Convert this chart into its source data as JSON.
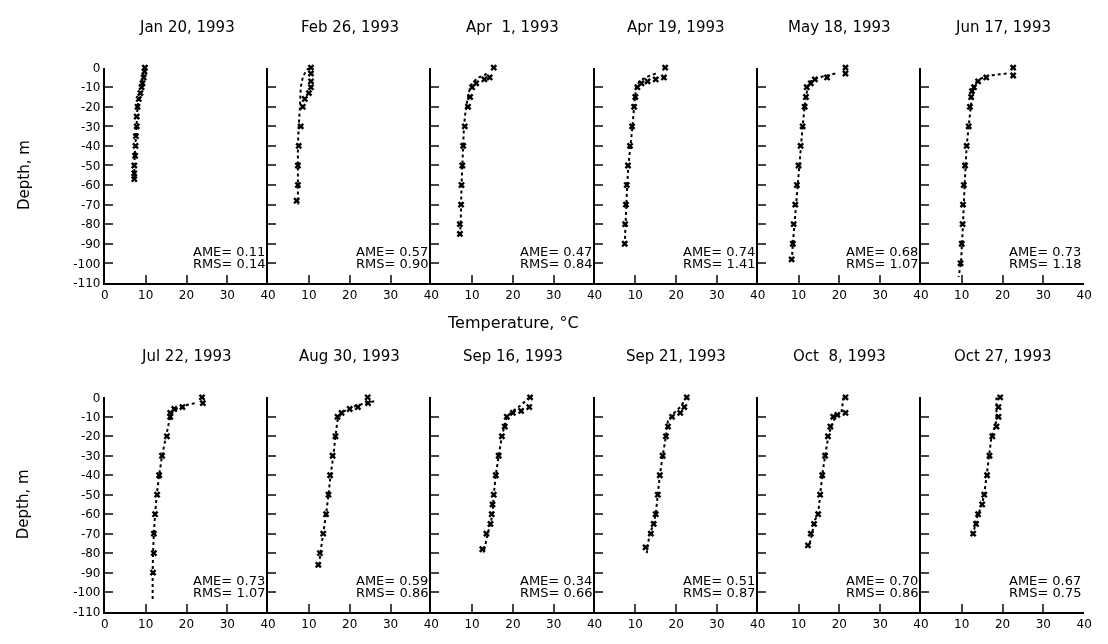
{
  "chart_data": [
    {
      "type": "scatter",
      "title": "Jan 20, 1993",
      "ylabel": "Depth, m",
      "xlim": [
        0,
        40
      ],
      "xticks": [
        0,
        10,
        20,
        30,
        40
      ],
      "ylim": [
        -110,
        0
      ],
      "yticks": [
        0,
        -10,
        -20,
        -30,
        -40,
        -50,
        -60,
        -70,
        -80,
        -90,
        -100,
        -110
      ],
      "marker": "cross",
      "annotations": [
        "AME= 0.11",
        "RMS= 0.14"
      ],
      "series": [
        {
          "color": "#000000",
          "x": [
            9.8,
            9.7,
            9.5,
            9.2,
            9,
            8.7,
            8.3,
            8,
            7.8,
            7.8,
            7.6,
            7.5,
            7.4,
            7.2,
            7.2,
            7.2
          ],
          "values": [
            0,
            -2,
            -5,
            -8,
            -10,
            -13,
            -16,
            -20,
            -25,
            -30,
            -35,
            -40,
            -45,
            -50,
            -54,
            -57
          ]
        },
        {
          "type": "line",
          "line_style": "dotted",
          "marker": "none",
          "color": "#000000",
          "x": [
            9.7,
            9.5,
            9.2,
            9,
            8.6,
            8.2,
            8,
            7.8,
            7.6,
            7.4,
            7.2,
            7.2
          ],
          "values": [
            0,
            -3,
            -6,
            -9,
            -13,
            -17,
            -20,
            -28,
            -35,
            -42,
            -50,
            -57
          ]
        }
      ]
    },
    {
      "type": "scatter",
      "title": "Feb 26, 1993",
      "xlim": [
        0,
        40
      ],
      "xticks": [
        10,
        20,
        30,
        40
      ],
      "ylim": [
        -110,
        0
      ],
      "yticks": [
        0,
        -10,
        -20,
        -30,
        -40,
        -50,
        -60,
        -70,
        -80,
        -90,
        -100,
        -110
      ],
      "tick_labels": "x",
      "marker": "cross",
      "annotations": [
        "AME= 0.57",
        "RMS= 0.90"
      ],
      "series": [
        {
          "color": "#000000",
          "x": [
            10.5,
            10.5,
            10.5,
            10.5,
            10,
            9,
            8.5,
            8,
            7.5,
            7.3,
            7.3,
            7
          ],
          "values": [
            0,
            -3,
            -7,
            -10,
            -13,
            -16,
            -20,
            -30,
            -40,
            -50,
            -60,
            -68
          ]
        },
        {
          "type": "line",
          "line_style": "dotted",
          "marker": "none",
          "color": "#000000",
          "x": [
            10,
            9.2,
            8.5,
            8,
            7.8,
            7.5,
            7.3,
            7.3,
            7.3,
            7.3
          ],
          "values": [
            0,
            -2,
            -5,
            -10,
            -20,
            -30,
            -40,
            -50,
            -60,
            -70
          ]
        }
      ]
    },
    {
      "type": "scatter",
      "title": "Apr  1, 1993",
      "xlabel": "Temperature, °C",
      "xlim": [
        0,
        40
      ],
      "xticks": [
        10,
        20,
        30,
        40
      ],
      "ylim": [
        -110,
        0
      ],
      "yticks": [
        0,
        -10,
        -20,
        -30,
        -40,
        -50,
        -60,
        -70,
        -80,
        -90,
        -100,
        -110
      ],
      "tick_labels": "x",
      "marker": "cross",
      "annotations": [
        "AME= 0.47",
        "RMS= 0.84"
      ],
      "series": [
        {
          "color": "#000000",
          "x": [
            15.3,
            14.3,
            13,
            11,
            10,
            9.5,
            9,
            8.2,
            7.8,
            7.6,
            7.4,
            7.3,
            7,
            7
          ],
          "values": [
            0,
            -5,
            -6,
            -8,
            -10,
            -15,
            -20,
            -30,
            -40,
            -50,
            -60,
            -70,
            -80,
            -85
          ]
        },
        {
          "type": "line",
          "line_style": "dotted",
          "marker": "none",
          "color": "#000000",
          "x": [
            13.5,
            13,
            11.5,
            10,
            9.5,
            9,
            8.5,
            8,
            7.8,
            7.4,
            7.2,
            7
          ],
          "values": [
            -3,
            -4,
            -5,
            -8,
            -10,
            -15,
            -20,
            -30,
            -40,
            -60,
            -80,
            -85
          ]
        }
      ]
    },
    {
      "type": "scatter",
      "title": "Apr 19, 1993",
      "xlim": [
        0,
        40
      ],
      "xticks": [
        10,
        20,
        30,
        40
      ],
      "ylim": [
        -110,
        0
      ],
      "yticks": [
        0,
        -10,
        -20,
        -30,
        -40,
        -50,
        -60,
        -70,
        -80,
        -90,
        -100,
        -110
      ],
      "tick_labels": "x",
      "marker": "cross",
      "annotations": [
        "AME= 0.74",
        "RMS= 1.41"
      ],
      "series": [
        {
          "color": "#000000",
          "x": [
            17.3,
            17,
            15,
            13,
            11.5,
            10.5,
            10,
            9.7,
            9.2,
            8.7,
            8.2,
            7.9,
            7.7,
            7.5,
            7.4
          ],
          "values": [
            0,
            -5,
            -6,
            -7,
            -8,
            -10,
            -15,
            -20,
            -30,
            -40,
            -50,
            -60,
            -70,
            -80,
            -90
          ]
        },
        {
          "type": "line",
          "line_style": "dotted",
          "marker": "none",
          "color": "#000000",
          "x": [
            15,
            12.5,
            11,
            10.2,
            9.7,
            9.3,
            8.8,
            8.3,
            8,
            7.6,
            7.4
          ],
          "values": [
            -3,
            -5,
            -7,
            -10,
            -20,
            -30,
            -40,
            -50,
            -60,
            -80,
            -91
          ]
        }
      ]
    },
    {
      "type": "scatter",
      "title": "May 18, 1993",
      "xlim": [
        0,
        40
      ],
      "xticks": [
        10,
        20,
        30,
        40
      ],
      "ylim": [
        -110,
        0
      ],
      "yticks": [
        0,
        -10,
        -20,
        -30,
        -40,
        -50,
        -60,
        -70,
        -80,
        -90,
        -100,
        -110
      ],
      "tick_labels": "x",
      "marker": "cross",
      "annotations": [
        "AME= 0.68",
        "RMS= 1.07"
      ],
      "series": [
        {
          "color": "#000000",
          "x": [
            21.5,
            21.5,
            17,
            14,
            13,
            12,
            11.8,
            11.5,
            11,
            10.5,
            10,
            9.6,
            9.2,
            8.8,
            8.6,
            8.3
          ],
          "values": [
            0,
            -3,
            -5,
            -6,
            -8,
            -10,
            -15,
            -20,
            -30,
            -40,
            -50,
            -60,
            -70,
            -80,
            -90,
            -98
          ]
        },
        {
          "type": "line",
          "line_style": "dotted",
          "marker": "none",
          "color": "#000000",
          "x": [
            19,
            15,
            13,
            12.2,
            11.5,
            11,
            10.6,
            10.2,
            9.8,
            9.4,
            9,
            8.6,
            8.3
          ],
          "values": [
            -3,
            -5,
            -7,
            -10,
            -20,
            -30,
            -40,
            -50,
            -60,
            -70,
            -80,
            -90,
            -100
          ]
        }
      ]
    },
    {
      "type": "scatter",
      "title": "Jun 17, 1993",
      "xlim": [
        0,
        40
      ],
      "xticks": [
        10,
        20,
        30,
        40
      ],
      "ylim": [
        -110,
        0
      ],
      "yticks": [
        0,
        -10,
        -20,
        -30,
        -40,
        -50,
        -60,
        -70,
        -80,
        -90,
        -100,
        -110
      ],
      "tick_labels": "x",
      "marker": "cross",
      "annotations": [
        "AME= 0.73",
        "RMS= 1.18"
      ],
      "series": [
        {
          "color": "#000000",
          "x": [
            22.6,
            22.6,
            16,
            14,
            13,
            12.5,
            12.3,
            12,
            11.7,
            11.2,
            10.8,
            10.5,
            10.3,
            10.2,
            10,
            9.7
          ],
          "values": [
            0,
            -4,
            -5,
            -7,
            -10,
            -12,
            -15,
            -20,
            -30,
            -40,
            -50,
            -60,
            -70,
            -80,
            -90,
            -100
          ]
        },
        {
          "type": "line",
          "line_style": "dotted",
          "marker": "none",
          "color": "#000000",
          "x": [
            21,
            17,
            14,
            12.8,
            12.2,
            11.7,
            11.2,
            10.7,
            10.3,
            9.8,
            9.2
          ],
          "values": [
            -3,
            -4,
            -6,
            -10,
            -20,
            -30,
            -40,
            -60,
            -80,
            -100,
            -107
          ]
        }
      ]
    },
    {
      "type": "scatter",
      "title": "Jul 22, 1993",
      "ylabel": "Depth, m",
      "xlim": [
        0,
        40
      ],
      "xticks": [
        0,
        10,
        20,
        30,
        40
      ],
      "ylim": [
        -110,
        0
      ],
      "yticks": [
        0,
        -10,
        -20,
        -30,
        -40,
        -50,
        -60,
        -70,
        -80,
        -90,
        -100,
        -110
      ],
      "marker": "cross",
      "annotations": [
        "AME= 0.73",
        "RMS= 1.07"
      ],
      "series": [
        {
          "color": "#000000",
          "x": [
            23.8,
            24,
            19,
            17,
            16,
            16,
            15.2,
            14,
            13.3,
            12.8,
            12.3,
            12,
            12,
            11.8
          ],
          "values": [
            0,
            -3,
            -5,
            -6,
            -8,
            -10,
            -20,
            -30,
            -40,
            -50,
            -60,
            -70,
            -80,
            -90
          ]
        },
        {
          "type": "line",
          "line_style": "dotted",
          "marker": "none",
          "color": "#000000",
          "x": [
            22,
            18,
            16.5,
            15.8,
            15,
            14,
            13.3,
            12.7,
            12.3,
            12,
            11.8,
            11.7,
            11.7
          ],
          "values": [
            -3,
            -5,
            -8,
            -12,
            -20,
            -30,
            -40,
            -50,
            -60,
            -70,
            -80,
            -90,
            -104
          ]
        }
      ]
    },
    {
      "type": "scatter",
      "title": "Aug 30, 1993",
      "xlim": [
        0,
        40
      ],
      "xticks": [
        10,
        20,
        30,
        40
      ],
      "ylim": [
        -110,
        0
      ],
      "yticks": [
        0,
        -10,
        -20,
        -30,
        -40,
        -50,
        -60,
        -70,
        -80,
        -90,
        -100,
        -110
      ],
      "tick_labels": "x",
      "marker": "cross",
      "annotations": [
        "AME= 0.59",
        "RMS= 0.86"
      ],
      "series": [
        {
          "color": "#000000",
          "x": [
            24.4,
            24.5,
            22,
            20,
            18,
            17,
            16.5,
            15.8,
            15.2,
            14.8,
            14.2,
            13.5,
            12.7,
            12.3
          ],
          "values": [
            0,
            -3,
            -5,
            -6,
            -8,
            -10,
            -20,
            -30,
            -40,
            -50,
            -60,
            -70,
            -80,
            -86
          ]
        },
        {
          "type": "line",
          "line_style": "dotted",
          "marker": "none",
          "color": "#000000",
          "x": [
            26,
            22,
            19.5,
            18,
            17,
            16.5,
            16,
            15.3,
            14.8,
            14.2,
            13.5,
            12.8,
            12.5
          ],
          "values": [
            -2,
            -4,
            -6,
            -8,
            -12,
            -20,
            -30,
            -40,
            -50,
            -60,
            -70,
            -80,
            -87
          ]
        }
      ]
    },
    {
      "type": "scatter",
      "title": "Sep 16, 1993",
      "xlim": [
        0,
        40
      ],
      "xticks": [
        10,
        20,
        30,
        40
      ],
      "ylim": [
        -110,
        0
      ],
      "yticks": [
        0,
        -10,
        -20,
        -30,
        -40,
        -50,
        -60,
        -70,
        -80,
        -90,
        -100,
        -110
      ],
      "tick_labels": "x",
      "marker": "cross",
      "annotations": [
        "AME= 0.34",
        "RMS= 0.66"
      ],
      "series": [
        {
          "color": "#000000",
          "x": [
            24.2,
            24,
            22,
            20,
            18.5,
            18,
            17.3,
            16.5,
            15.8,
            15.3,
            15,
            14.8,
            14.5,
            13.5,
            12.5
          ],
          "values": [
            0,
            -5,
            -7,
            -8,
            -10,
            -15,
            -20,
            -30,
            -40,
            -50,
            -55,
            -60,
            -65,
            -70,
            -78
          ]
        },
        {
          "type": "line",
          "line_style": "dotted",
          "marker": "none",
          "color": "#000000",
          "x": [
            24,
            22,
            20,
            18.5,
            17.3,
            16.5,
            15.8,
            15.3,
            15,
            14.5,
            13.8,
            12.8
          ],
          "values": [
            0,
            -4,
            -7,
            -10,
            -20,
            -30,
            -40,
            -50,
            -60,
            -65,
            -70,
            -80
          ]
        }
      ]
    },
    {
      "type": "scatter",
      "title": "Sep 21, 1993",
      "xlim": [
        0,
        40
      ],
      "xticks": [
        10,
        20,
        30,
        40
      ],
      "ylim": [
        -110,
        0
      ],
      "yticks": [
        0,
        -10,
        -20,
        -30,
        -40,
        -50,
        -60,
        -70,
        -80,
        -90,
        -100,
        -110
      ],
      "tick_labels": "x",
      "marker": "cross",
      "annotations": [
        "AME= 0.51",
        "RMS= 0.87"
      ],
      "series": [
        {
          "color": "#000000",
          "x": [
            22.6,
            22,
            21,
            19,
            18,
            17.5,
            16.7,
            16,
            15.5,
            15,
            14.5,
            13.8,
            12.5
          ],
          "values": [
            0,
            -5,
            -8,
            -10,
            -15,
            -20,
            -30,
            -40,
            -50,
            -60,
            -65,
            -70,
            -77
          ]
        },
        {
          "type": "line",
          "line_style": "dotted",
          "marker": "none",
          "color": "#000000",
          "x": [
            22.6,
            21,
            19.5,
            18,
            17.5,
            16.7,
            16,
            15.5,
            15,
            14.3,
            13.5,
            12.8
          ],
          "values": [
            0,
            -5,
            -8,
            -12,
            -20,
            -30,
            -40,
            -50,
            -60,
            -66,
            -70,
            -80
          ]
        }
      ]
    },
    {
      "type": "scatter",
      "title": "Oct  8, 1993",
      "xlim": [
        0,
        40
      ],
      "xticks": [
        10,
        20,
        30,
        40
      ],
      "ylim": [
        -110,
        0
      ],
      "yticks": [
        0,
        -10,
        -20,
        -30,
        -40,
        -50,
        -60,
        -70,
        -80,
        -90,
        -100,
        -110
      ],
      "tick_labels": "x",
      "marker": "cross",
      "annotations": [
        "AME= 0.70",
        "RMS= 0.86"
      ],
      "series": [
        {
          "color": "#000000",
          "x": [
            21.5,
            21.5,
            19.5,
            18.5,
            17.8,
            17.2,
            16.5,
            15.8,
            15.3,
            14.8,
            13.8,
            13,
            12.3
          ],
          "values": [
            0,
            -8,
            -9,
            -10,
            -15,
            -20,
            -30,
            -40,
            -50,
            -60,
            -65,
            -70,
            -76
          ]
        },
        {
          "type": "line",
          "line_style": "dotted",
          "marker": "none",
          "color": "#000000",
          "x": [
            21,
            20.5,
            19,
            18,
            17.3,
            16.5,
            15.8,
            15.3,
            14.8,
            14,
            13.3,
            12.5
          ],
          "values": [
            0,
            -8,
            -10,
            -15,
            -20,
            -30,
            -40,
            -50,
            -60,
            -63,
            -70,
            -77
          ]
        }
      ]
    },
    {
      "type": "scatter",
      "title": "Oct 27, 1993",
      "xlim": [
        0,
        40
      ],
      "xticks": [
        10,
        20,
        30,
        40
      ],
      "ylim": [
        -110,
        0
      ],
      "yticks": [
        0,
        -10,
        -20,
        -30,
        -40,
        -50,
        -60,
        -70,
        -80,
        -90,
        -100,
        -110
      ],
      "tick_labels": "x",
      "marker": "cross",
      "annotations": [
        "AME= 0.67",
        "RMS= 0.75"
      ],
      "series": [
        {
          "color": "#000000",
          "x": [
            19.4,
            19,
            19,
            18.5,
            17.5,
            16.8,
            16.2,
            15.5,
            15,
            14,
            13.5,
            12.8
          ],
          "values": [
            0,
            -5,
            -10,
            -15,
            -20,
            -30,
            -40,
            -50,
            -55,
            -60,
            -65,
            -70
          ]
        },
        {
          "type": "line",
          "line_style": "dotted",
          "marker": "none",
          "color": "#000000",
          "x": [
            18.5,
            18.5,
            18.3,
            17.3,
            16.7,
            16.1,
            15.5,
            14.8,
            14,
            13.3,
            12.8
          ],
          "values": [
            0,
            -10,
            -14,
            -20,
            -30,
            -40,
            -50,
            -56,
            -60,
            -65,
            -71
          ]
        }
      ]
    }
  ]
}
